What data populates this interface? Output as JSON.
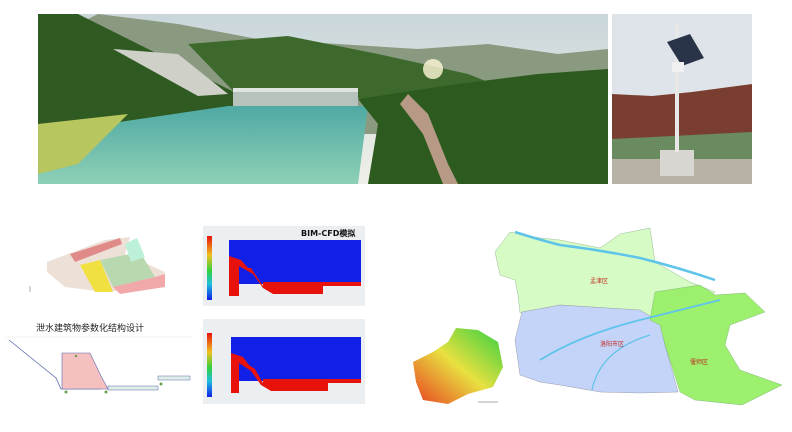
{
  "photos": {
    "dam_render": {
      "subject": "reservoir-dam-render"
    },
    "monitor_station": {
      "subject": "solar-monitoring-station"
    }
  },
  "design": {
    "title": "泄水建筑物参数化结构设计"
  },
  "cfd": {
    "title": "BIM-CFD模拟",
    "colors": {
      "water": "#e8120c",
      "air": "#1020e6"
    }
  },
  "map": {
    "regions": [
      {
        "label": "孟津区",
        "color": "#d6fbc4"
      },
      {
        "label": "洛阳市区",
        "color": "#c4d4f8"
      },
      {
        "label": "偃师区",
        "color": "#9cf06e"
      }
    ],
    "river_color": "#5ec4ea"
  }
}
